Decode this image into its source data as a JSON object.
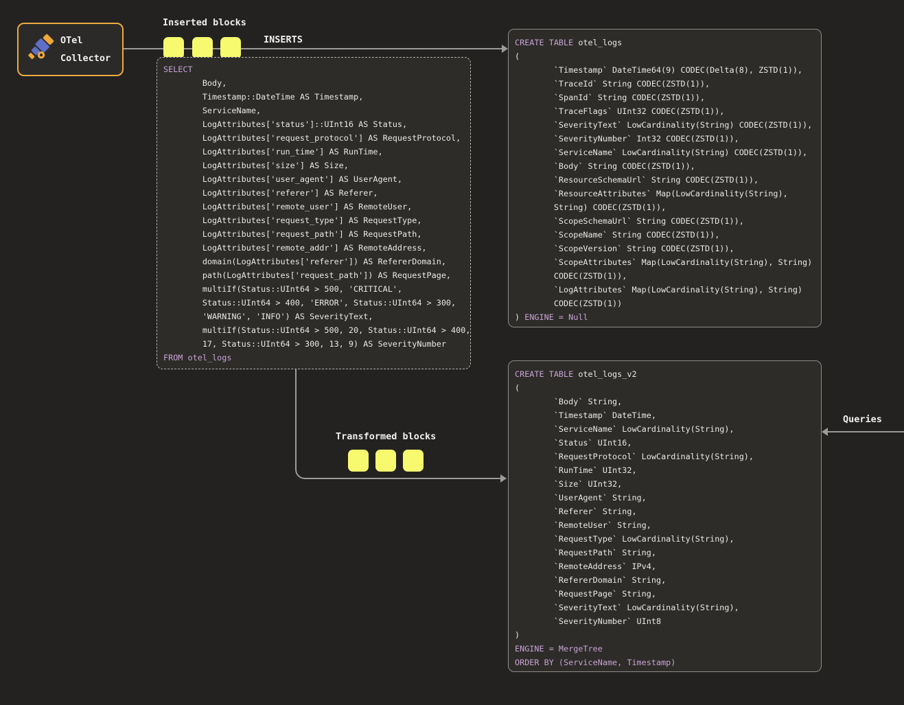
{
  "colors": {
    "page_bg": "#232220",
    "box_bg": "#2d2c29",
    "collector_border": "#edaa3f",
    "block_yellow": "#f7f96e",
    "arrow_gray": "#9b9b9b",
    "keyword_purple": "#c9a2d4",
    "code_text": "#eae8e4",
    "icon_blue": "#5f6fc6",
    "icon_yellow": "#f0a73c"
  },
  "collector": {
    "title_line1": "OTel",
    "title_line2": "Collector",
    "icon": "telescope-icon"
  },
  "labels": {
    "inserted_blocks": "Inserted blocks",
    "inserts": "INSERTS",
    "transformed_blocks": "Transformed blocks",
    "queries": "Queries"
  },
  "select_box": {
    "lines": [
      [
        {
          "t": "SELECT",
          "c": "kw"
        }
      ],
      "        Body,",
      "        Timestamp::DateTime AS Timestamp,",
      "        ServiceName,",
      "        LogAttributes['status']::UInt16 AS Status,",
      "        LogAttributes['request_protocol'] AS RequestProtocol,",
      "        LogAttributes['run_time'] AS RunTime,",
      "        LogAttributes['size'] AS Size,",
      "        LogAttributes['user_agent'] AS UserAgent,",
      "        LogAttributes['referer'] AS Referer,",
      "        LogAttributes['remote_user'] AS RemoteUser,",
      "        LogAttributes['request_type'] AS RequestType,",
      "        LogAttributes['request_path'] AS RequestPath,",
      "        LogAttributes['remote_addr'] AS RemoteAddress,",
      "        domain(LogAttributes['referer']) AS RefererDomain,",
      "        path(LogAttributes['request_path']) AS RequestPage,",
      "        multiIf(Status::UInt64 > 500, 'CRITICAL',",
      "        Status::UInt64 > 400, 'ERROR', Status::UInt64 > 300,",
      "        'WARNING', 'INFO') AS SeverityText,",
      "        multiIf(Status::UInt64 > 500, 20, Status::UInt64 > 400,",
      "        17, Status::UInt64 > 300, 13, 9) AS SeverityNumber",
      [
        {
          "t": "FROM otel_logs",
          "c": "kw"
        }
      ]
    ]
  },
  "table_otel_logs": {
    "lines": [
      [
        {
          "t": "CREATE TABLE",
          "c": "kw"
        },
        {
          "t": " otel_logs",
          "c": "p"
        }
      ],
      "(",
      "        `Timestamp` DateTime64(9) CODEC(Delta(8), ZSTD(1)),",
      "        `TraceId` String CODEC(ZSTD(1)),",
      "        `SpanId` String CODEC(ZSTD(1)),",
      "        `TraceFlags` UInt32 CODEC(ZSTD(1)),",
      "        `SeverityText` LowCardinality(String) CODEC(ZSTD(1)),",
      "        `SeverityNumber` Int32 CODEC(ZSTD(1)),",
      "        `ServiceName` LowCardinality(String) CODEC(ZSTD(1)),",
      "        `Body` String CODEC(ZSTD(1)),",
      "        `ResourceSchemaUrl` String CODEC(ZSTD(1)),",
      "        `ResourceAttributes` Map(LowCardinality(String),",
      "        String) CODEC(ZSTD(1)),",
      "        `ScopeSchemaUrl` String CODEC(ZSTD(1)),",
      "        `ScopeName` String CODEC(ZSTD(1)),",
      "        `ScopeVersion` String CODEC(ZSTD(1)),",
      "        `ScopeAttributes` Map(LowCardinality(String), String)",
      "        CODEC(ZSTD(1)),",
      "        `LogAttributes` Map(LowCardinality(String), String)",
      "        CODEC(ZSTD(1))",
      [
        {
          "t": ") ",
          "c": "p"
        },
        {
          "t": "ENGINE = Null",
          "c": "kw"
        }
      ]
    ]
  },
  "table_otel_logs_v2": {
    "lines": [
      [
        {
          "t": "CREATE TABLE",
          "c": "kw"
        },
        {
          "t": " otel_logs_v2",
          "c": "p"
        }
      ],
      "(",
      "        `Body` String,",
      "        `Timestamp` DateTime,",
      "        `ServiceName` LowCardinality(String),",
      "        `Status` UInt16,",
      "        `RequestProtocol` LowCardinality(String),",
      "        `RunTime` UInt32,",
      "        `Size` UInt32,",
      "        `UserAgent` String,",
      "        `Referer` String,",
      "        `RemoteUser` String,",
      "        `RequestType` LowCardinality(String),",
      "        `RequestPath` String,",
      "        `RemoteAddress` IPv4,",
      "        `RefererDomain` String,",
      "        `RequestPage` String,",
      "        `SeverityText` LowCardinality(String),",
      "        `SeverityNumber` UInt8",
      ")",
      [
        {
          "t": "ENGINE = MergeTree",
          "c": "kw"
        }
      ],
      [
        {
          "t": "ORDER BY (ServiceName, Timestamp)",
          "c": "kw"
        }
      ]
    ]
  }
}
